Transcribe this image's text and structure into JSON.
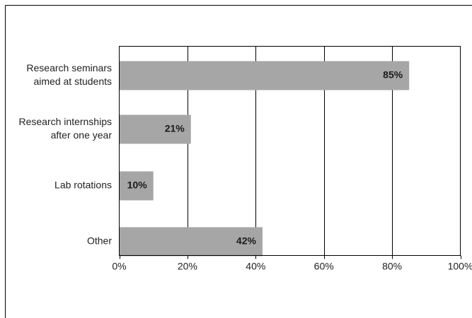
{
  "chart_data": {
    "type": "bar",
    "orientation": "horizontal",
    "title": "",
    "xlabel": "",
    "ylabel": "",
    "categories": [
      [
        "Research seminars",
        "aimed at students"
      ],
      [
        "Research internships",
        "after one year"
      ],
      [
        "Lab rotations"
      ],
      [
        "Other"
      ]
    ],
    "values": [
      85,
      21,
      10,
      42
    ],
    "data_labels": [
      "85%",
      "21%",
      "10%",
      "42%"
    ],
    "xlim": [
      0,
      100
    ],
    "x_ticks": [
      0,
      20,
      40,
      60,
      80,
      100
    ],
    "x_tick_labels": [
      "0%",
      "20%",
      "40%",
      "60%",
      "80%",
      "100%"
    ],
    "grid": "vertical",
    "legend": "none",
    "colors": {
      "bar": "#a6a6a6",
      "grid": "#000000",
      "text": "#222222"
    }
  }
}
